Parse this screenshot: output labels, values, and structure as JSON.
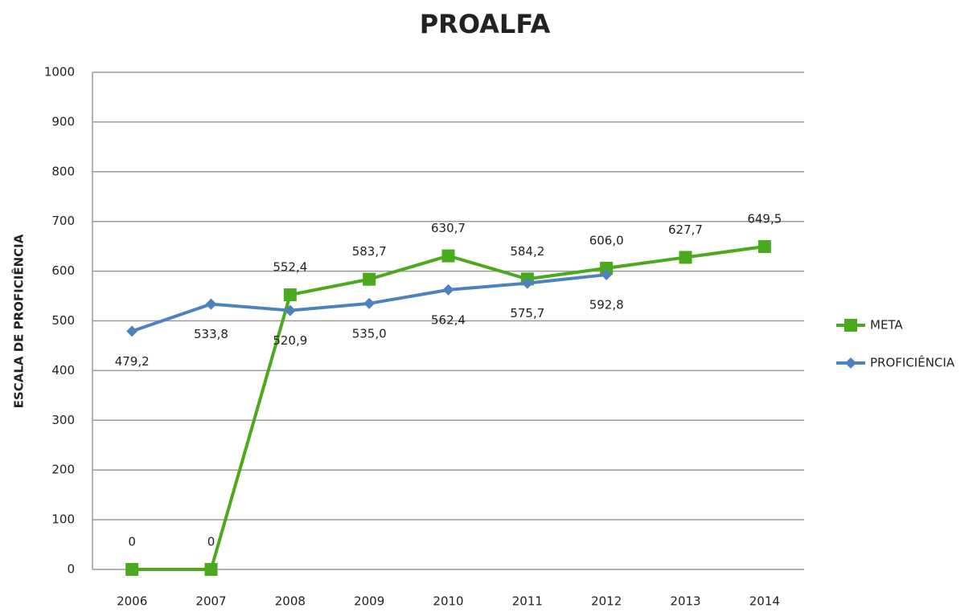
{
  "chart_data": {
    "type": "line",
    "title": "PROALFA",
    "y_label": "ESCALA DE PROFICIÊNCIA",
    "categories": [
      "2006",
      "2007",
      "2008",
      "2009",
      "2010",
      "2011",
      "2012",
      "2013",
      "2014"
    ],
    "series": [
      {
        "name": "META",
        "color": "#4aa91d",
        "marker": "square",
        "values": [
          0,
          0,
          552.4,
          583.7,
          630.7,
          584.2,
          606.0,
          627.7,
          649.5
        ],
        "value_labels": [
          "0",
          "0",
          "552,4",
          "583,7",
          "630,7",
          "584,2",
          "606,0",
          "627,7",
          "649,5"
        ]
      },
      {
        "name": "PROFICIÊNCIA",
        "color": "#4f81bd",
        "marker": "diamond",
        "values": [
          479.2,
          533.8,
          520.9,
          535.0,
          562.4,
          575.7,
          592.8,
          null,
          null
        ],
        "value_labels": [
          "479,2",
          "533,8",
          "520,9",
          "535,0",
          "562,4",
          "575,7",
          "592,8",
          null,
          null
        ]
      }
    ],
    "ylim": [
      0,
      1000
    ],
    "yticks": [
      0,
      100,
      200,
      300,
      400,
      500,
      600,
      700,
      800,
      900,
      1000
    ],
    "grid": true,
    "legend": "right"
  }
}
